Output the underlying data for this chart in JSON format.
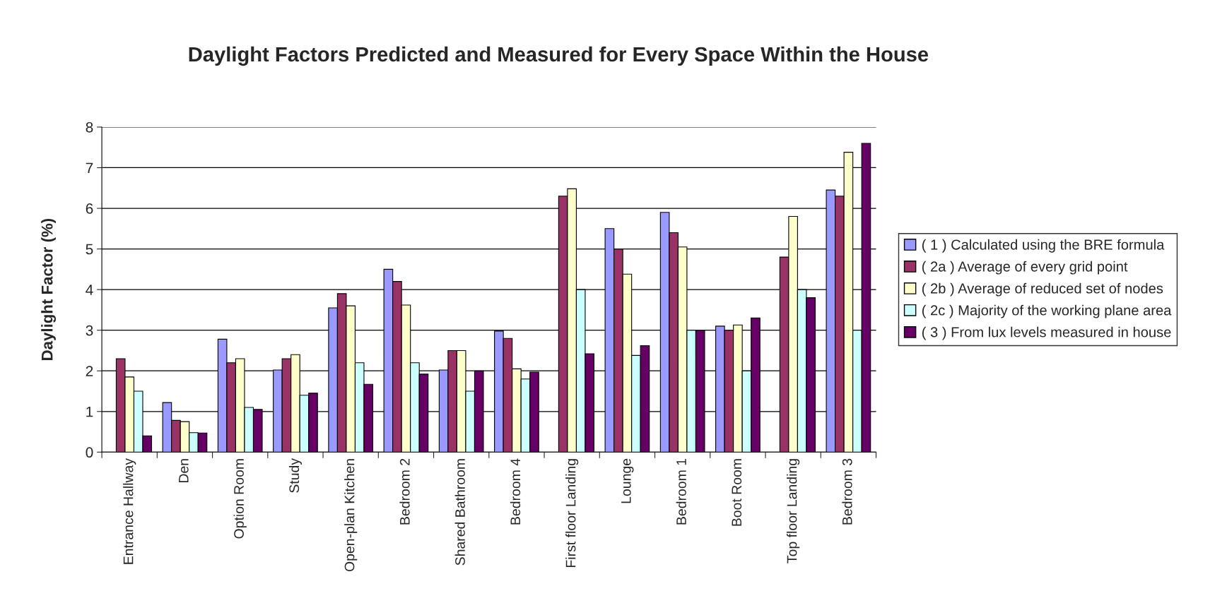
{
  "chart_data": {
    "type": "bar",
    "title": "Daylight Factors Predicted and Measured for Every Space Within the House",
    "ylabel": "Daylight Factor (%)",
    "categories": [
      "Entrance Hallway",
      "Den",
      "Option Room",
      "Study",
      "Open-plan Kitchen",
      "Bedroom 2",
      "Shared Bathroom",
      "Bedroom 4",
      "First floor Landing",
      "Lounge",
      "Bedroom 1",
      "Boot Room",
      "Top floor Landing",
      "Bedroom 3"
    ],
    "series": [
      {
        "name": "( 1 ) Calculated using the BRE formula",
        "color": "#9999ff",
        "values": [
          null,
          1.22,
          2.78,
          2.02,
          3.55,
          4.5,
          2.02,
          2.98,
          null,
          5.5,
          5.9,
          3.1,
          null,
          6.45
        ]
      },
      {
        "name": "( 2a ) Average of every grid point",
        "color": "#993366",
        "values": [
          2.3,
          0.78,
          2.2,
          2.3,
          3.9,
          4.2,
          2.5,
          2.8,
          6.3,
          5.0,
          5.4,
          3.0,
          4.8,
          6.3
        ]
      },
      {
        "name": "( 2b ) Average of reduced set of nodes",
        "color": "#ffffcc",
        "values": [
          1.85,
          0.75,
          2.3,
          2.4,
          3.6,
          3.62,
          2.5,
          2.05,
          6.48,
          4.38,
          5.05,
          3.13,
          5.8,
          7.38
        ]
      },
      {
        "name": "( 2c ) Majority of the working plane area",
        "color": "#ccffff",
        "values": [
          1.5,
          0.48,
          1.1,
          1.4,
          2.2,
          2.2,
          1.5,
          1.8,
          4.0,
          2.38,
          3.0,
          2.0,
          4.0,
          3.0
        ]
      },
      {
        "name": "( 3 ) From lux levels measured in house",
        "color": "#660066",
        "values": [
          0.4,
          0.47,
          1.05,
          1.45,
          1.67,
          1.92,
          2.0,
          1.97,
          2.42,
          2.62,
          3.0,
          3.3,
          3.8,
          7.6
        ]
      }
    ],
    "ylim": [
      0,
      8
    ],
    "yticks": [
      0,
      1,
      2,
      3,
      4,
      5,
      6,
      7,
      8
    ],
    "grid": "y",
    "legend": "right"
  }
}
